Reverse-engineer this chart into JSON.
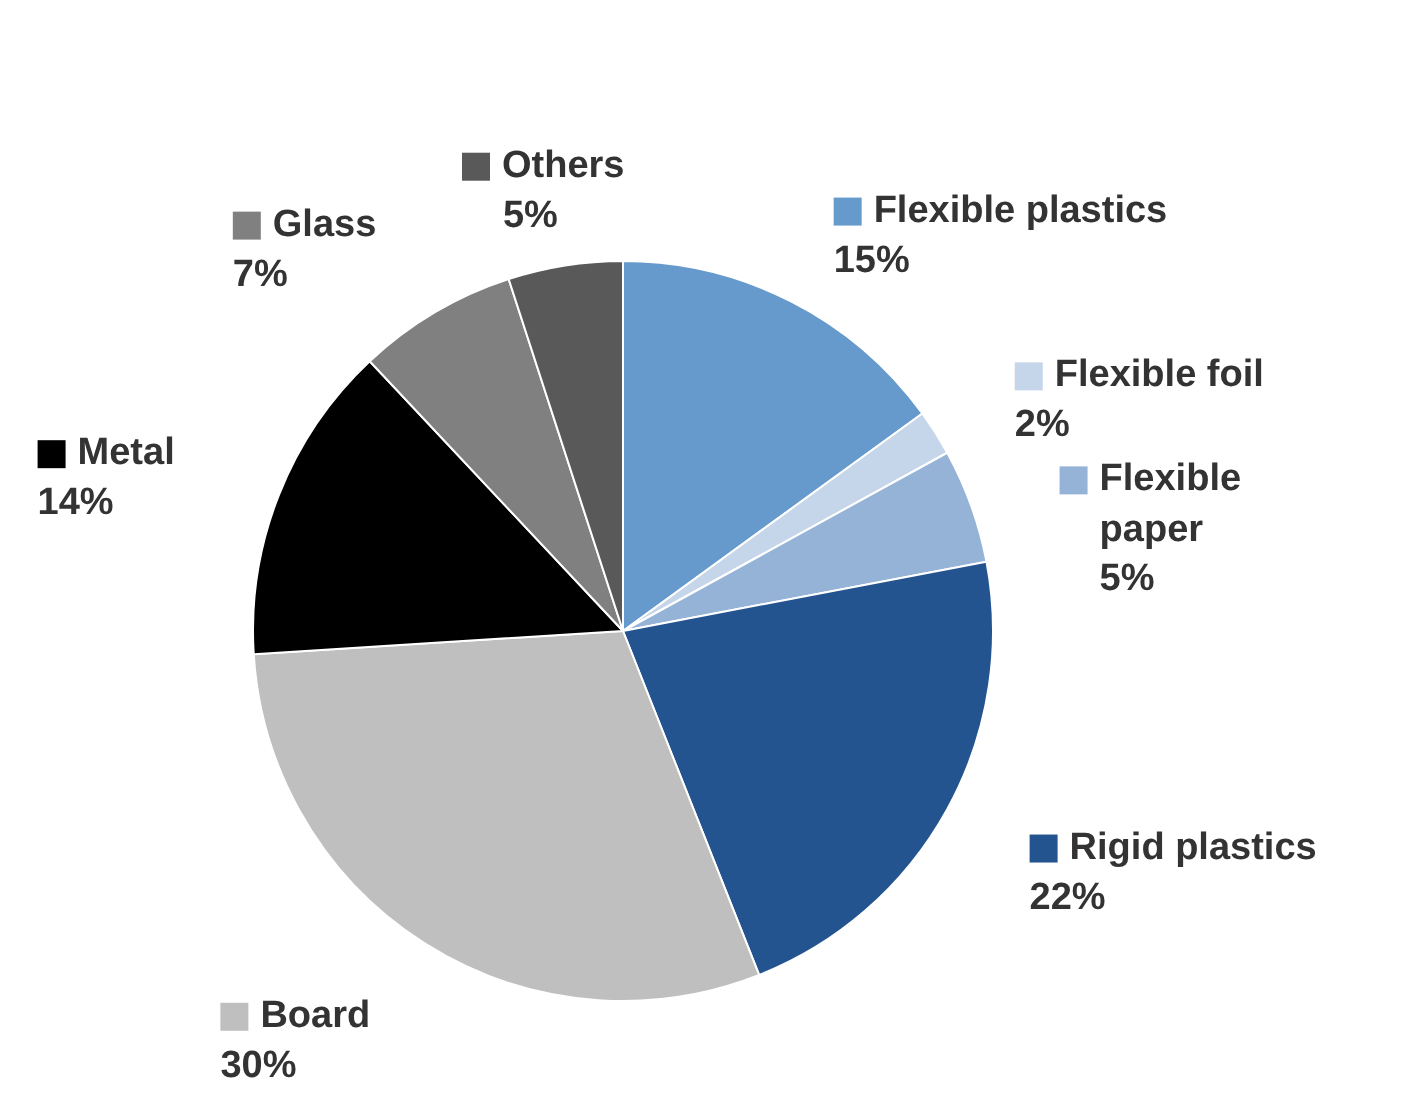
{
  "chart_data": {
    "type": "pie",
    "categories": [
      "Flexible plastics",
      "Flexible foil",
      "Flexible paper",
      "Rigid plastics",
      "Board",
      "Metal",
      "Glass",
      "Others"
    ],
    "values": [
      15,
      2,
      5,
      22,
      30,
      14,
      7,
      5
    ],
    "value_labels": [
      "15%",
      "2%",
      "5%",
      "22%",
      "30%",
      "14%",
      "7%",
      "5%"
    ],
    "legend": "right",
    "colors": [
      "#6699cc",
      "#c6d6ea",
      "#95b3d7",
      "#23548f",
      "#bfbfbf",
      "#000000",
      "#808080",
      "#595959"
    ]
  }
}
